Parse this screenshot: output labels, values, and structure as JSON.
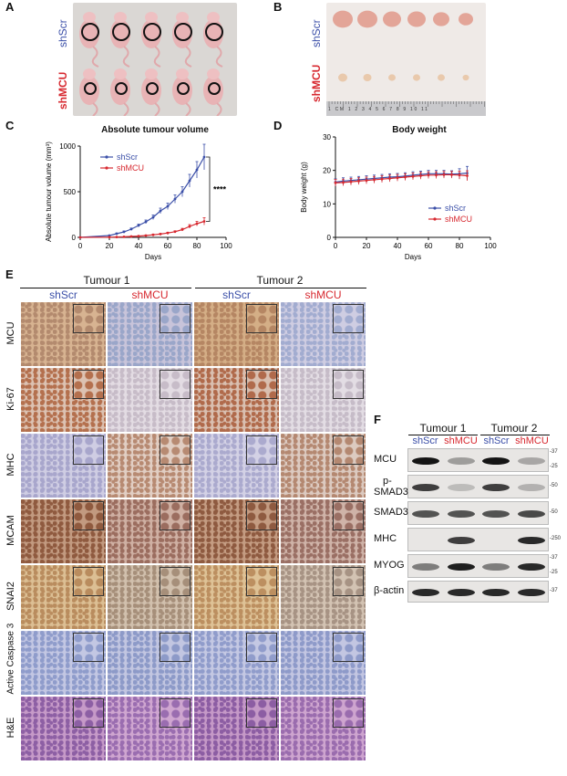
{
  "panels": {
    "A": "A",
    "B": "B",
    "C": "C",
    "D": "D",
    "E": "E",
    "F": "F"
  },
  "panel_a": {
    "group1": "shScr",
    "group2": "shMCU"
  },
  "panel_b": {
    "group1": "shScr",
    "group2": "shMCU",
    "ruler_text": "1 CM 1 2 3 4 5 6 7 8 9 10 11"
  },
  "chart_data": [
    {
      "type": "line",
      "title": "Absolute tumour volume",
      "xlabel": "Days",
      "ylabel": "Absolute tumour volume (mm³)",
      "xlim": [
        0,
        100
      ],
      "ylim": [
        0,
        1000
      ],
      "xticks": [
        "0",
        "20",
        "40",
        "60",
        "80",
        "100"
      ],
      "yticks": [
        "0",
        "500",
        "1000"
      ],
      "significance": "****",
      "series": [
        {
          "name": "shScr",
          "color": "#3b4fa8",
          "x": [
            0,
            20,
            25,
            30,
            35,
            40,
            45,
            50,
            55,
            60,
            65,
            70,
            75,
            80,
            85
          ],
          "y": [
            0,
            20,
            40,
            60,
            90,
            130,
            170,
            220,
            290,
            340,
            420,
            500,
            620,
            740,
            880
          ],
          "err": [
            0,
            5,
            8,
            10,
            12,
            15,
            20,
            25,
            30,
            35,
            45,
            55,
            70,
            90,
            140
          ]
        },
        {
          "name": "shMCU",
          "color": "#d7282f",
          "x": [
            0,
            20,
            25,
            30,
            35,
            40,
            45,
            50,
            55,
            60,
            65,
            70,
            75,
            80,
            85
          ],
          "y": [
            0,
            2,
            4,
            6,
            10,
            14,
            20,
            28,
            36,
            48,
            62,
            85,
            120,
            150,
            175
          ],
          "err": [
            0,
            1,
            2,
            2,
            3,
            4,
            5,
            6,
            7,
            8,
            10,
            14,
            20,
            25,
            40
          ]
        }
      ]
    },
    {
      "type": "line",
      "title": "Body weight",
      "xlabel": "Days",
      "ylabel": "Body weight (g)",
      "xlim": [
        0,
        100
      ],
      "ylim": [
        0,
        30
      ],
      "xticks": [
        "0",
        "20",
        "40",
        "60",
        "80",
        "100"
      ],
      "yticks": [
        "0",
        "10",
        "20",
        "30"
      ],
      "series": [
        {
          "name": "shScr",
          "color": "#3b4fa8",
          "x": [
            0,
            5,
            10,
            15,
            20,
            25,
            30,
            35,
            40,
            45,
            50,
            55,
            60,
            65,
            70,
            75,
            80,
            85
          ],
          "y": [
            16.5,
            16.8,
            17,
            17.2,
            17.4,
            17.6,
            17.8,
            18,
            18.1,
            18.3,
            18.6,
            18.8,
            19,
            19,
            19,
            18.9,
            19,
            19.2
          ],
          "err": [
            1,
            1,
            1,
            1,
            1,
            1,
            1,
            1,
            1,
            1,
            1,
            1,
            1,
            1,
            1,
            1,
            1.5,
            2
          ]
        },
        {
          "name": "shMCU",
          "color": "#d7282f",
          "x": [
            0,
            5,
            10,
            15,
            20,
            25,
            30,
            35,
            40,
            45,
            50,
            55,
            60,
            65,
            70,
            75,
            80,
            85
          ],
          "y": [
            16.3,
            16.4,
            16.6,
            16.8,
            17,
            17.2,
            17.4,
            17.6,
            17.8,
            18,
            18.2,
            18.4,
            18.6,
            18.6,
            18.7,
            18.7,
            18.6,
            18.4
          ],
          "err": [
            1,
            1,
            1,
            1,
            1,
            1,
            1,
            1,
            1,
            1,
            1,
            1,
            1,
            1,
            1,
            1,
            1.2,
            1.5
          ]
        }
      ]
    }
  ],
  "panel_e": {
    "tumour1": "Tumour 1",
    "tumour2": "Tumour 2",
    "col_labels": [
      "shScr",
      "shMCU",
      "shScr",
      "shMCU"
    ],
    "rows": [
      "MCU",
      "Ki-67",
      "MHC",
      "MCAM",
      "SNAI2",
      "Active Caspase 3",
      "H&E"
    ]
  },
  "panel_f": {
    "tumour1": "Tumour 1",
    "tumour2": "Tumour 2",
    "col_labels": [
      "shScr",
      "shMCU",
      "shScr",
      "shMCU"
    ],
    "rows": [
      {
        "label": "MCU",
        "markers": [
          "37",
          "25"
        ]
      },
      {
        "label": "p-SMAD3",
        "markers": [
          "50"
        ]
      },
      {
        "label": "SMAD3",
        "markers": [
          "50"
        ]
      },
      {
        "label": "MHC",
        "markers": [
          "250"
        ]
      },
      {
        "label": "MYOG",
        "markers": [
          "37",
          "25"
        ]
      },
      {
        "label": "β-actin",
        "markers": [
          "37"
        ]
      }
    ]
  }
}
